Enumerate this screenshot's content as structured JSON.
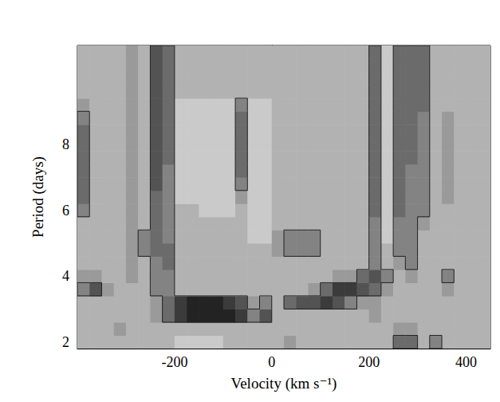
{
  "chart_data": {
    "type": "heatmap",
    "xlabel": "Velocity (km s⁻¹)",
    "ylabel": "Period (days)",
    "xlim": [
      -400,
      450
    ],
    "xticks": [
      -200,
      0,
      200,
      400
    ],
    "ylim": [
      1.8,
      11
    ],
    "yticks": [
      2,
      4,
      6,
      8
    ],
    "grid": false,
    "zlim": [
      0,
      9
    ],
    "contour_level": 5,
    "x": [
      -387.5,
      -362.5,
      -337.5,
      -312.5,
      -287.5,
      -262.5,
      -237.5,
      -212.5,
      -187.5,
      -162.5,
      -137.5,
      -112.5,
      -87.5,
      -62.5,
      -37.5,
      -12.5,
      12.5,
      37.5,
      62.5,
      87.5,
      112.5,
      137.5,
      162.5,
      187.5,
      212.5,
      237.5,
      262.5,
      287.5,
      312.5,
      337.5,
      362.5,
      387.5,
      412.5,
      437.5
    ],
    "y": [
      2.0,
      2.4,
      2.8,
      3.2,
      3.6,
      4.0,
      4.4,
      4.8,
      5.2,
      5.6,
      6.0,
      6.4,
      6.8,
      7.2,
      7.6,
      8.0,
      8.4,
      8.8,
      9.2,
      9.6,
      10.0,
      10.4,
      10.8
    ],
    "cells": [
      [
        3,
        3,
        3,
        3,
        3,
        3,
        3,
        3,
        2,
        2,
        2,
        2,
        3,
        3,
        3,
        3,
        3,
        4,
        3,
        3,
        3,
        3,
        3,
        3,
        3,
        3,
        6,
        6,
        3,
        5,
        3,
        3,
        3,
        3
      ],
      [
        3,
        3,
        3,
        4,
        3,
        3,
        3,
        3,
        3,
        3,
        3,
        3,
        3,
        3,
        3,
        3,
        3,
        3,
        3,
        3,
        3,
        3,
        3,
        3,
        3,
        3,
        4,
        4,
        3,
        3,
        3,
        3,
        3,
        3
      ],
      [
        3,
        3,
        3,
        3,
        3,
        3,
        4,
        6,
        8,
        9,
        9,
        9,
        9,
        8,
        5,
        7,
        3,
        3,
        3,
        3,
        3,
        3,
        3,
        3,
        4,
        3,
        3,
        3,
        3,
        3,
        3,
        3,
        3,
        3
      ],
      [
        3,
        3,
        3,
        3,
        3,
        3,
        4,
        6,
        8,
        9,
        9,
        9,
        8,
        7,
        4,
        5,
        3,
        6,
        7,
        7,
        8,
        7,
        5,
        4,
        4,
        3,
        3,
        3,
        3,
        3,
        3,
        3,
        3,
        3
      ],
      [
        5,
        7,
        4,
        3,
        3,
        3,
        5,
        5,
        3,
        3,
        3,
        3,
        3,
        3,
        3,
        3,
        3,
        3,
        3,
        4,
        6,
        8,
        8,
        7,
        6,
        4,
        3,
        3,
        3,
        3,
        4,
        3,
        3,
        3
      ],
      [
        4,
        4,
        3,
        3,
        4,
        3,
        5,
        5,
        3,
        3,
        3,
        3,
        3,
        3,
        3,
        3,
        3,
        3,
        3,
        3,
        3,
        4,
        4,
        6,
        7,
        5,
        3,
        4,
        3,
        3,
        5,
        3,
        3,
        3
      ],
      [
        3,
        3,
        3,
        3,
        4,
        3,
        5,
        6,
        3,
        3,
        3,
        3,
        3,
        3,
        3,
        3,
        3,
        3,
        3,
        3,
        3,
        3,
        3,
        3,
        5,
        3,
        4,
        5,
        3,
        3,
        3,
        3,
        3,
        3
      ],
      [
        3,
        3,
        3,
        3,
        4,
        5,
        6,
        6,
        3,
        3,
        3,
        3,
        3,
        3,
        3,
        3,
        4,
        5,
        5,
        5,
        3,
        3,
        3,
        3,
        5,
        3,
        5,
        5,
        3,
        3,
        3,
        3,
        3,
        3
      ],
      [
        3,
        3,
        3,
        3,
        4,
        5,
        6,
        5,
        3,
        3,
        3,
        3,
        3,
        3,
        2,
        2,
        4,
        5,
        5,
        5,
        3,
        3,
        3,
        3,
        5,
        2,
        5,
        5,
        3,
        3,
        3,
        3,
        3,
        3
      ],
      [
        3,
        3,
        3,
        3,
        4,
        3,
        6,
        5,
        3,
        3,
        3,
        3,
        3,
        3,
        2,
        2,
        3,
        3,
        3,
        3,
        3,
        3,
        3,
        3,
        5,
        2,
        5,
        5,
        4,
        3,
        3,
        3,
        3,
        3
      ],
      [
        5,
        3,
        3,
        3,
        4,
        3,
        6,
        5,
        3,
        3,
        2,
        2,
        2,
        3,
        2,
        2,
        3,
        3,
        3,
        3,
        3,
        3,
        3,
        3,
        6,
        2,
        6,
        5,
        5,
        3,
        3,
        3,
        3,
        3
      ],
      [
        6,
        3,
        3,
        3,
        4,
        3,
        6,
        5,
        2,
        2,
        2,
        2,
        2,
        4,
        2,
        2,
        3,
        3,
        3,
        3,
        3,
        3,
        3,
        3,
        6,
        2,
        6,
        5,
        5,
        3,
        4,
        3,
        3,
        3
      ],
      [
        6,
        3,
        3,
        3,
        4,
        3,
        7,
        5,
        2,
        2,
        2,
        2,
        2,
        5,
        2,
        2,
        3,
        3,
        3,
        3,
        3,
        3,
        3,
        3,
        6,
        2,
        6,
        5,
        5,
        3,
        4,
        3,
        3,
        3
      ],
      [
        6,
        3,
        3,
        3,
        4,
        3,
        7,
        5,
        2,
        2,
        2,
        2,
        2,
        6,
        2,
        2,
        3,
        3,
        3,
        3,
        3,
        3,
        3,
        3,
        6,
        2,
        6,
        5,
        5,
        3,
        4,
        3,
        3,
        3
      ],
      [
        6,
        3,
        3,
        3,
        4,
        3,
        7,
        6,
        2,
        2,
        2,
        2,
        2,
        6,
        2,
        2,
        3,
        3,
        3,
        3,
        3,
        3,
        3,
        3,
        6,
        2,
        6,
        6,
        5,
        3,
        4,
        3,
        3,
        3
      ],
      [
        6,
        3,
        3,
        3,
        4,
        3,
        7,
        6,
        2,
        2,
        2,
        2,
        2,
        6,
        2,
        2,
        3,
        3,
        3,
        3,
        3,
        3,
        3,
        3,
        6,
        2,
        6,
        6,
        5,
        3,
        4,
        3,
        3,
        3
      ],
      [
        6,
        3,
        3,
        3,
        4,
        3,
        7,
        6,
        2,
        2,
        2,
        2,
        2,
        6,
        2,
        2,
        3,
        3,
        3,
        3,
        3,
        3,
        3,
        3,
        6,
        2,
        6,
        6,
        5,
        3,
        4,
        3,
        3,
        3
      ],
      [
        5,
        3,
        3,
        3,
        4,
        3,
        7,
        6,
        2,
        2,
        2,
        2,
        2,
        6,
        2,
        2,
        3,
        3,
        3,
        3,
        3,
        3,
        3,
        3,
        6,
        2,
        6,
        6,
        5,
        3,
        4,
        3,
        3,
        3
      ],
      [
        4,
        3,
        3,
        3,
        4,
        3,
        7,
        6,
        2,
        2,
        2,
        2,
        2,
        5,
        2,
        2,
        3,
        3,
        3,
        3,
        3,
        3,
        3,
        3,
        6,
        2,
        6,
        6,
        6,
        3,
        3,
        3,
        3,
        3
      ],
      [
        3,
        3,
        3,
        3,
        4,
        3,
        7,
        6,
        3,
        3,
        3,
        3,
        3,
        3,
        3,
        3,
        3,
        3,
        3,
        3,
        3,
        3,
        3,
        3,
        6,
        2,
        6,
        6,
        6,
        3,
        3,
        3,
        3,
        3
      ],
      [
        3,
        3,
        3,
        3,
        4,
        3,
        7,
        6,
        3,
        3,
        3,
        3,
        3,
        3,
        3,
        3,
        3,
        3,
        3,
        3,
        3,
        3,
        3,
        3,
        6,
        2,
        6,
        6,
        6,
        3,
        3,
        3,
        3,
        3
      ],
      [
        3,
        3,
        3,
        3,
        4,
        3,
        7,
        6,
        3,
        3,
        3,
        3,
        3,
        3,
        3,
        3,
        3,
        3,
        3,
        3,
        3,
        3,
        3,
        3,
        6,
        2,
        6,
        6,
        6,
        3,
        3,
        3,
        3,
        3
      ],
      [
        3,
        3,
        3,
        3,
        4,
        3,
        7,
        6,
        3,
        3,
        3,
        3,
        3,
        3,
        3,
        3,
        3,
        3,
        3,
        3,
        3,
        3,
        3,
        3,
        6,
        2,
        6,
        6,
        6,
        3,
        3,
        3,
        3,
        3
      ]
    ]
  }
}
